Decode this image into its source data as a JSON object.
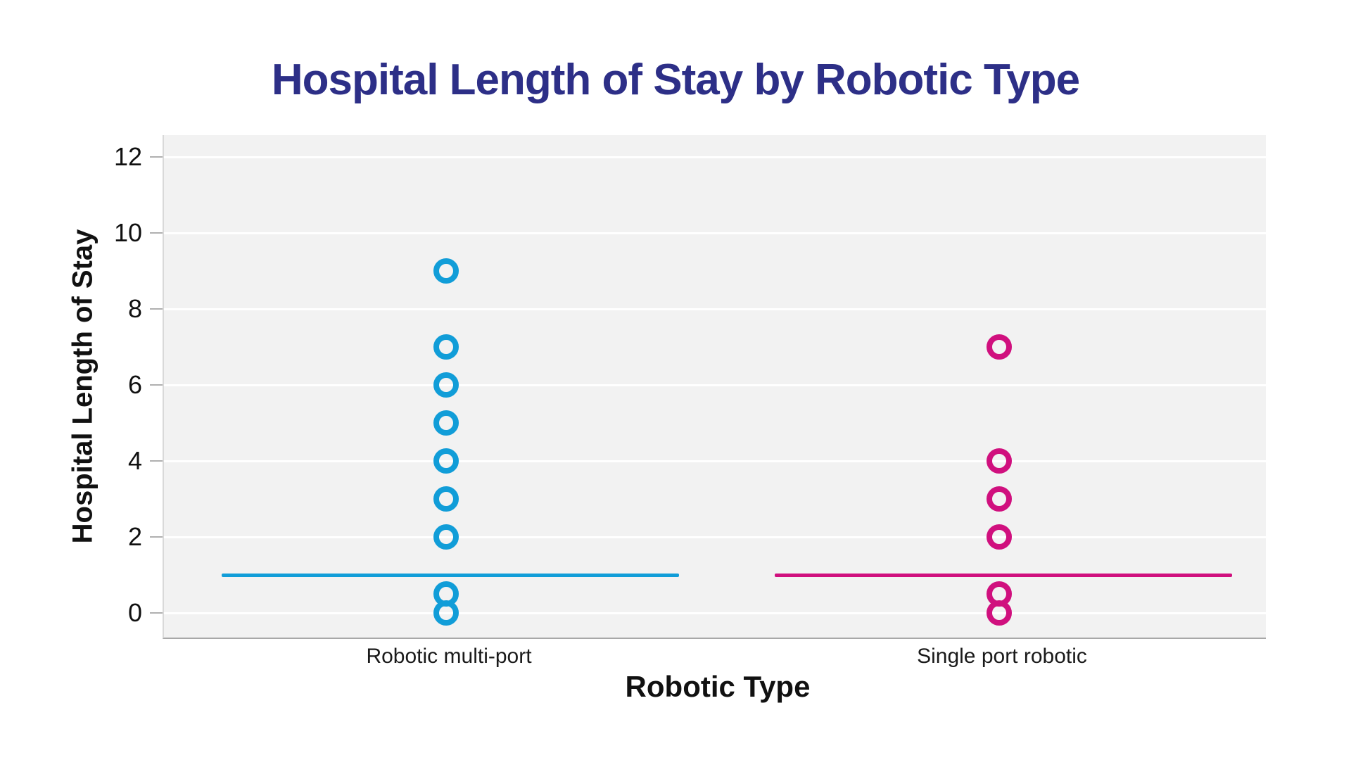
{
  "title": "Hospital Length of Stay by Robotic Type",
  "colors": {
    "title_text": "#2d2f87",
    "plot_background": "#f2f2f2",
    "gridline": "#ffffff",
    "axis_line": "#b0b0b0",
    "tick_label": "#111111",
    "series_multi_port": "#119dd8",
    "series_single_port": "#d0107e"
  },
  "chart_data": {
    "type": "scatter",
    "title": "Hospital Length of Stay by Robotic Type",
    "xlabel": "Robotic Type",
    "ylabel": "Hospital Length of Stay",
    "categories": [
      "Robotic multi-port",
      "Single port robotic"
    ],
    "yticks": [
      0,
      2,
      4,
      6,
      8,
      10,
      12
    ],
    "ylim": [
      -0.65,
      12.57
    ],
    "grid": true,
    "legend_position": "none",
    "marker_style": "open-circle",
    "series": [
      {
        "name": "Robotic multi-port",
        "color": "#119dd8",
        "values": [
          9,
          7,
          6,
          5,
          4,
          3,
          2,
          0.5,
          0
        ],
        "median_line_y": 1
      },
      {
        "name": "Single port robotic",
        "color": "#d0107e",
        "values": [
          7,
          4,
          3,
          2,
          0.5,
          0
        ],
        "median_line_y": 1
      }
    ]
  }
}
